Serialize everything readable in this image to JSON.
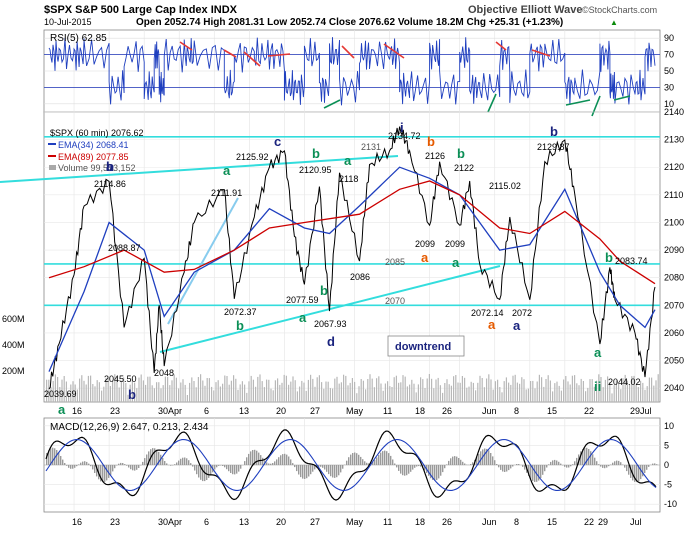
{
  "header": {
    "symbol_line": "$SPX S&P 500 Large Cap Index INDX",
    "brand": "Objective Elliott Wave",
    "date": "10-Jul-2015",
    "ohlc": "Open 2052.74 High 2081.31 Low 2052.74 Close 2076.62 Volume 18.2M Chg +25.31 (+1.23%)",
    "arrow": "▲",
    "copyright": "©StockCharts.com"
  },
  "rsi": {
    "label": "RSI(5) 62.85",
    "levels": [
      "90",
      "70",
      "50",
      "30",
      "10"
    ]
  },
  "price_legend": {
    "line1": "$SPX (60 min) 2076.62",
    "line2": "EMA(34) 2068.41",
    "line3": "EMA(89) 2077.85",
    "line4": "Volume 99,573,152"
  },
  "macd": {
    "label": "MACD(12,26,9) 2.647, 0.213, 2.434",
    "levels": [
      "10",
      "5",
      "0",
      "-5",
      "-10"
    ]
  },
  "volume_axis": [
    "600M",
    "400M",
    "200M"
  ],
  "date_labels": [
    "16",
    "23",
    "30Apr",
    "6",
    "13",
    "20",
    "27",
    "May",
    "11",
    "18",
    "26",
    "Jun",
    "8",
    "15",
    "22",
    "29Jul",
    "6"
  ],
  "date_labels_bottom": [
    "16",
    "23",
    "30Apr",
    "6",
    "13",
    "20",
    "27",
    "May",
    "11",
    "18",
    "26",
    "Jun",
    "8",
    "15",
    "22",
    "29",
    "Jul",
    "6"
  ],
  "annotations": {
    "downtrend": "downtrend",
    "prices": [
      "2114.86",
      "2088.87",
      "2039.69",
      "2045.50",
      "2048",
      "2111.91",
      "2072.37",
      "2125.92",
      "2077.59",
      "2120.95",
      "2067.93",
      "2118",
      "2086",
      "2131",
      "2134.72",
      "2126",
      "2099",
      "2099",
      "2122",
      "2115.02",
      "2072.14",
      "2072",
      "2085",
      "2070",
      "2129.87",
      "2083.74",
      "2044.02"
    ],
    "waves": [
      "a",
      "b",
      "b",
      "b",
      "c",
      "a",
      "b",
      "a",
      "b",
      "d",
      "a",
      "b",
      "b",
      "a",
      "a",
      "b",
      "a",
      "a",
      "a",
      "b",
      "b",
      "a",
      "ii",
      "i"
    ]
  },
  "colors": {
    "price": "#000000",
    "ema34": "#1f3fbf",
    "ema89": "#cc0000",
    "volume": "#a9a9a9",
    "trendline": "#33dddd",
    "wave_green": "#0b8f56",
    "wave_blue": "#1a237e",
    "wave_orange": "#e65b00",
    "wave_red": "#e53935"
  },
  "chart_data": {
    "type": "line",
    "interval": "60 min",
    "price_axis": {
      "ylim": [
        2035,
        2140
      ],
      "ticks": [
        2040,
        2050,
        2060,
        2070,
        2080,
        2090,
        2100,
        2110,
        2120,
        2130,
        2140
      ]
    },
    "rsi_axis": {
      "ylim": [
        0,
        100
      ],
      "ticks": [
        10,
        30,
        50,
        70,
        90
      ]
    },
    "macd_axis": {
      "ylim": [
        -12,
        12
      ],
      "ticks": [
        -10,
        -5,
        0,
        5,
        10
      ]
    },
    "series": [
      {
        "name": "$SPX (60 min)",
        "points": [
          [
            "2015-03-11",
            2039.69
          ],
          [
            "2015-03-13",
            2056
          ],
          [
            "2015-03-16",
            2081
          ],
          [
            "2015-03-18",
            2106
          ],
          [
            "2015-03-23",
            2114.86
          ],
          [
            "2015-03-26",
            2062
          ],
          [
            "2015-03-30",
            2087
          ],
          [
            "2015-04-01",
            2045.5
          ],
          [
            "2015-04-02",
            2070
          ],
          [
            "2015-04-03",
            2048
          ],
          [
            "2015-04-07",
            2082
          ],
          [
            "2015-04-09",
            2100
          ],
          [
            "2015-04-15",
            2111.91
          ],
          [
            "2015-04-17",
            2072.37
          ],
          [
            "2015-04-21",
            2102
          ],
          [
            "2015-04-24",
            2120
          ],
          [
            "2015-04-27",
            2125.92
          ],
          [
            "2015-04-29",
            2095
          ],
          [
            "2015-05-01",
            2077.59
          ],
          [
            "2015-05-04",
            2113
          ],
          [
            "2015-05-06",
            2067.93
          ],
          [
            "2015-05-08",
            2118
          ],
          [
            "2015-05-12",
            2086
          ],
          [
            "2015-05-14",
            2120.95
          ],
          [
            "2015-05-18",
            2126
          ],
          [
            "2015-05-20",
            2134.72
          ],
          [
            "2015-05-22",
            2126
          ],
          [
            "2015-05-26",
            2099
          ],
          [
            "2015-05-28",
            2122
          ],
          [
            "2015-06-01",
            2099
          ],
          [
            "2015-06-03",
            2115.02
          ],
          [
            "2015-06-05",
            2085
          ],
          [
            "2015-06-09",
            2072.14
          ],
          [
            "2015-06-11",
            2102
          ],
          [
            "2015-06-15",
            2072
          ],
          [
            "2015-06-18",
            2122
          ],
          [
            "2015-06-22",
            2129.87
          ],
          [
            "2015-06-24",
            2110
          ],
          [
            "2015-06-29",
            2056
          ],
          [
            "2015-07-01",
            2083.74
          ],
          [
            "2015-07-02",
            2072
          ],
          [
            "2015-07-06",
            2060
          ],
          [
            "2015-07-08",
            2044.02
          ],
          [
            "2015-07-10",
            2076.62
          ]
        ]
      },
      {
        "name": "EMA(34)",
        "points": [
          [
            "2015-03-11",
            2046
          ],
          [
            "2015-03-18",
            2075
          ],
          [
            "2015-03-23",
            2100
          ],
          [
            "2015-03-30",
            2090
          ],
          [
            "2015-04-03",
            2066
          ],
          [
            "2015-04-09",
            2082
          ],
          [
            "2015-04-17",
            2090
          ],
          [
            "2015-04-24",
            2105
          ],
          [
            "2015-05-01",
            2098
          ],
          [
            "2015-05-06",
            2096
          ],
          [
            "2015-05-12",
            2106
          ],
          [
            "2015-05-20",
            2120
          ],
          [
            "2015-05-26",
            2116
          ],
          [
            "2015-06-01",
            2110
          ],
          [
            "2015-06-09",
            2090
          ],
          [
            "2015-06-15",
            2092
          ],
          [
            "2015-06-22",
            2112
          ],
          [
            "2015-06-29",
            2082
          ],
          [
            "2015-07-03",
            2070
          ],
          [
            "2015-07-08",
            2062
          ],
          [
            "2015-07-10",
            2068.41
          ]
        ]
      },
      {
        "name": "EMA(89)",
        "points": [
          [
            "2015-03-11",
            2080
          ],
          [
            "2015-03-18",
            2084
          ],
          [
            "2015-03-26",
            2090
          ],
          [
            "2015-04-03",
            2082
          ],
          [
            "2015-04-09",
            2083
          ],
          [
            "2015-04-17",
            2090
          ],
          [
            "2015-04-24",
            2098
          ],
          [
            "2015-05-01",
            2100
          ],
          [
            "2015-05-12",
            2103
          ],
          [
            "2015-05-20",
            2112
          ],
          [
            "2015-05-26",
            2115
          ],
          [
            "2015-06-01",
            2110
          ],
          [
            "2015-06-09",
            2098
          ],
          [
            "2015-06-15",
            2096
          ],
          [
            "2015-06-22",
            2104
          ],
          [
            "2015-06-29",
            2094
          ],
          [
            "2015-07-03",
            2086
          ],
          [
            "2015-07-10",
            2077.85
          ]
        ]
      }
    ],
    "rsi": {
      "name": "RSI(5)",
      "last": 62.85
    },
    "macd": {
      "name": "MACD(12,26,9)",
      "macd": 2.647,
      "signal": 0.213,
      "histogram": 2.434
    },
    "volume_last": 99573152,
    "horizontal_levels": [
      2131,
      2085,
      2070
    ],
    "legend": "top-left",
    "grid": true
  }
}
